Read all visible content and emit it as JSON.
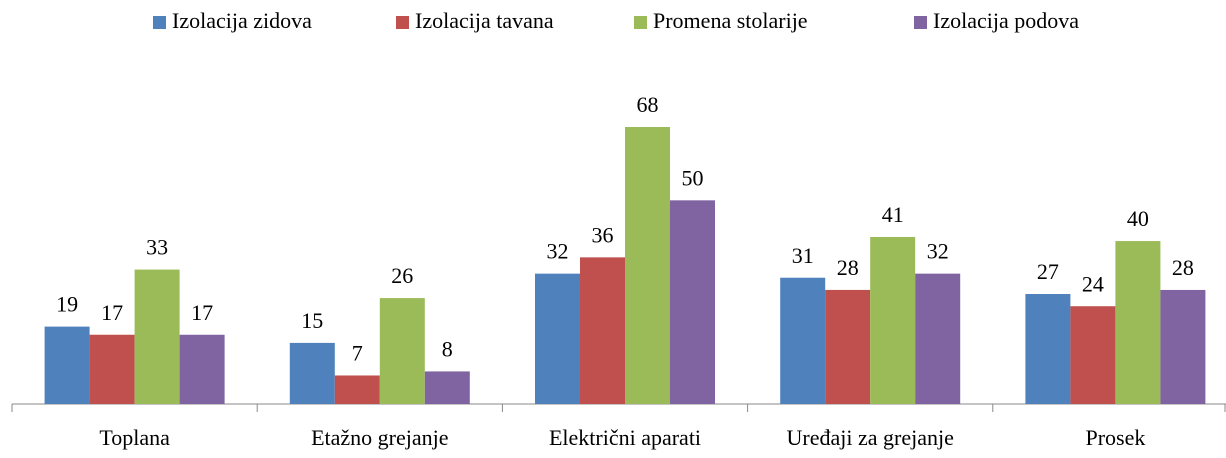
{
  "chart_data": {
    "type": "bar",
    "categories": [
      "Toplana",
      "Etažno grejanje",
      "Električni aparati",
      "Uređaji za grejanje",
      "Prosek"
    ],
    "series": [
      {
        "name": "Izolacija zidova",
        "color": "#4f81bd",
        "values": [
          19,
          15,
          32,
          31,
          27
        ]
      },
      {
        "name": "Izolacija tavana",
        "color": "#c0504d",
        "values": [
          17,
          7,
          36,
          28,
          24
        ]
      },
      {
        "name": "Promena stolarije",
        "color": "#9bbb59",
        "values": [
          33,
          26,
          68,
          41,
          40
        ]
      },
      {
        "name": "Izolacija podova",
        "color": "#8064a2",
        "values": [
          17,
          8,
          50,
          32,
          28
        ]
      }
    ],
    "legend": "top"
  }
}
